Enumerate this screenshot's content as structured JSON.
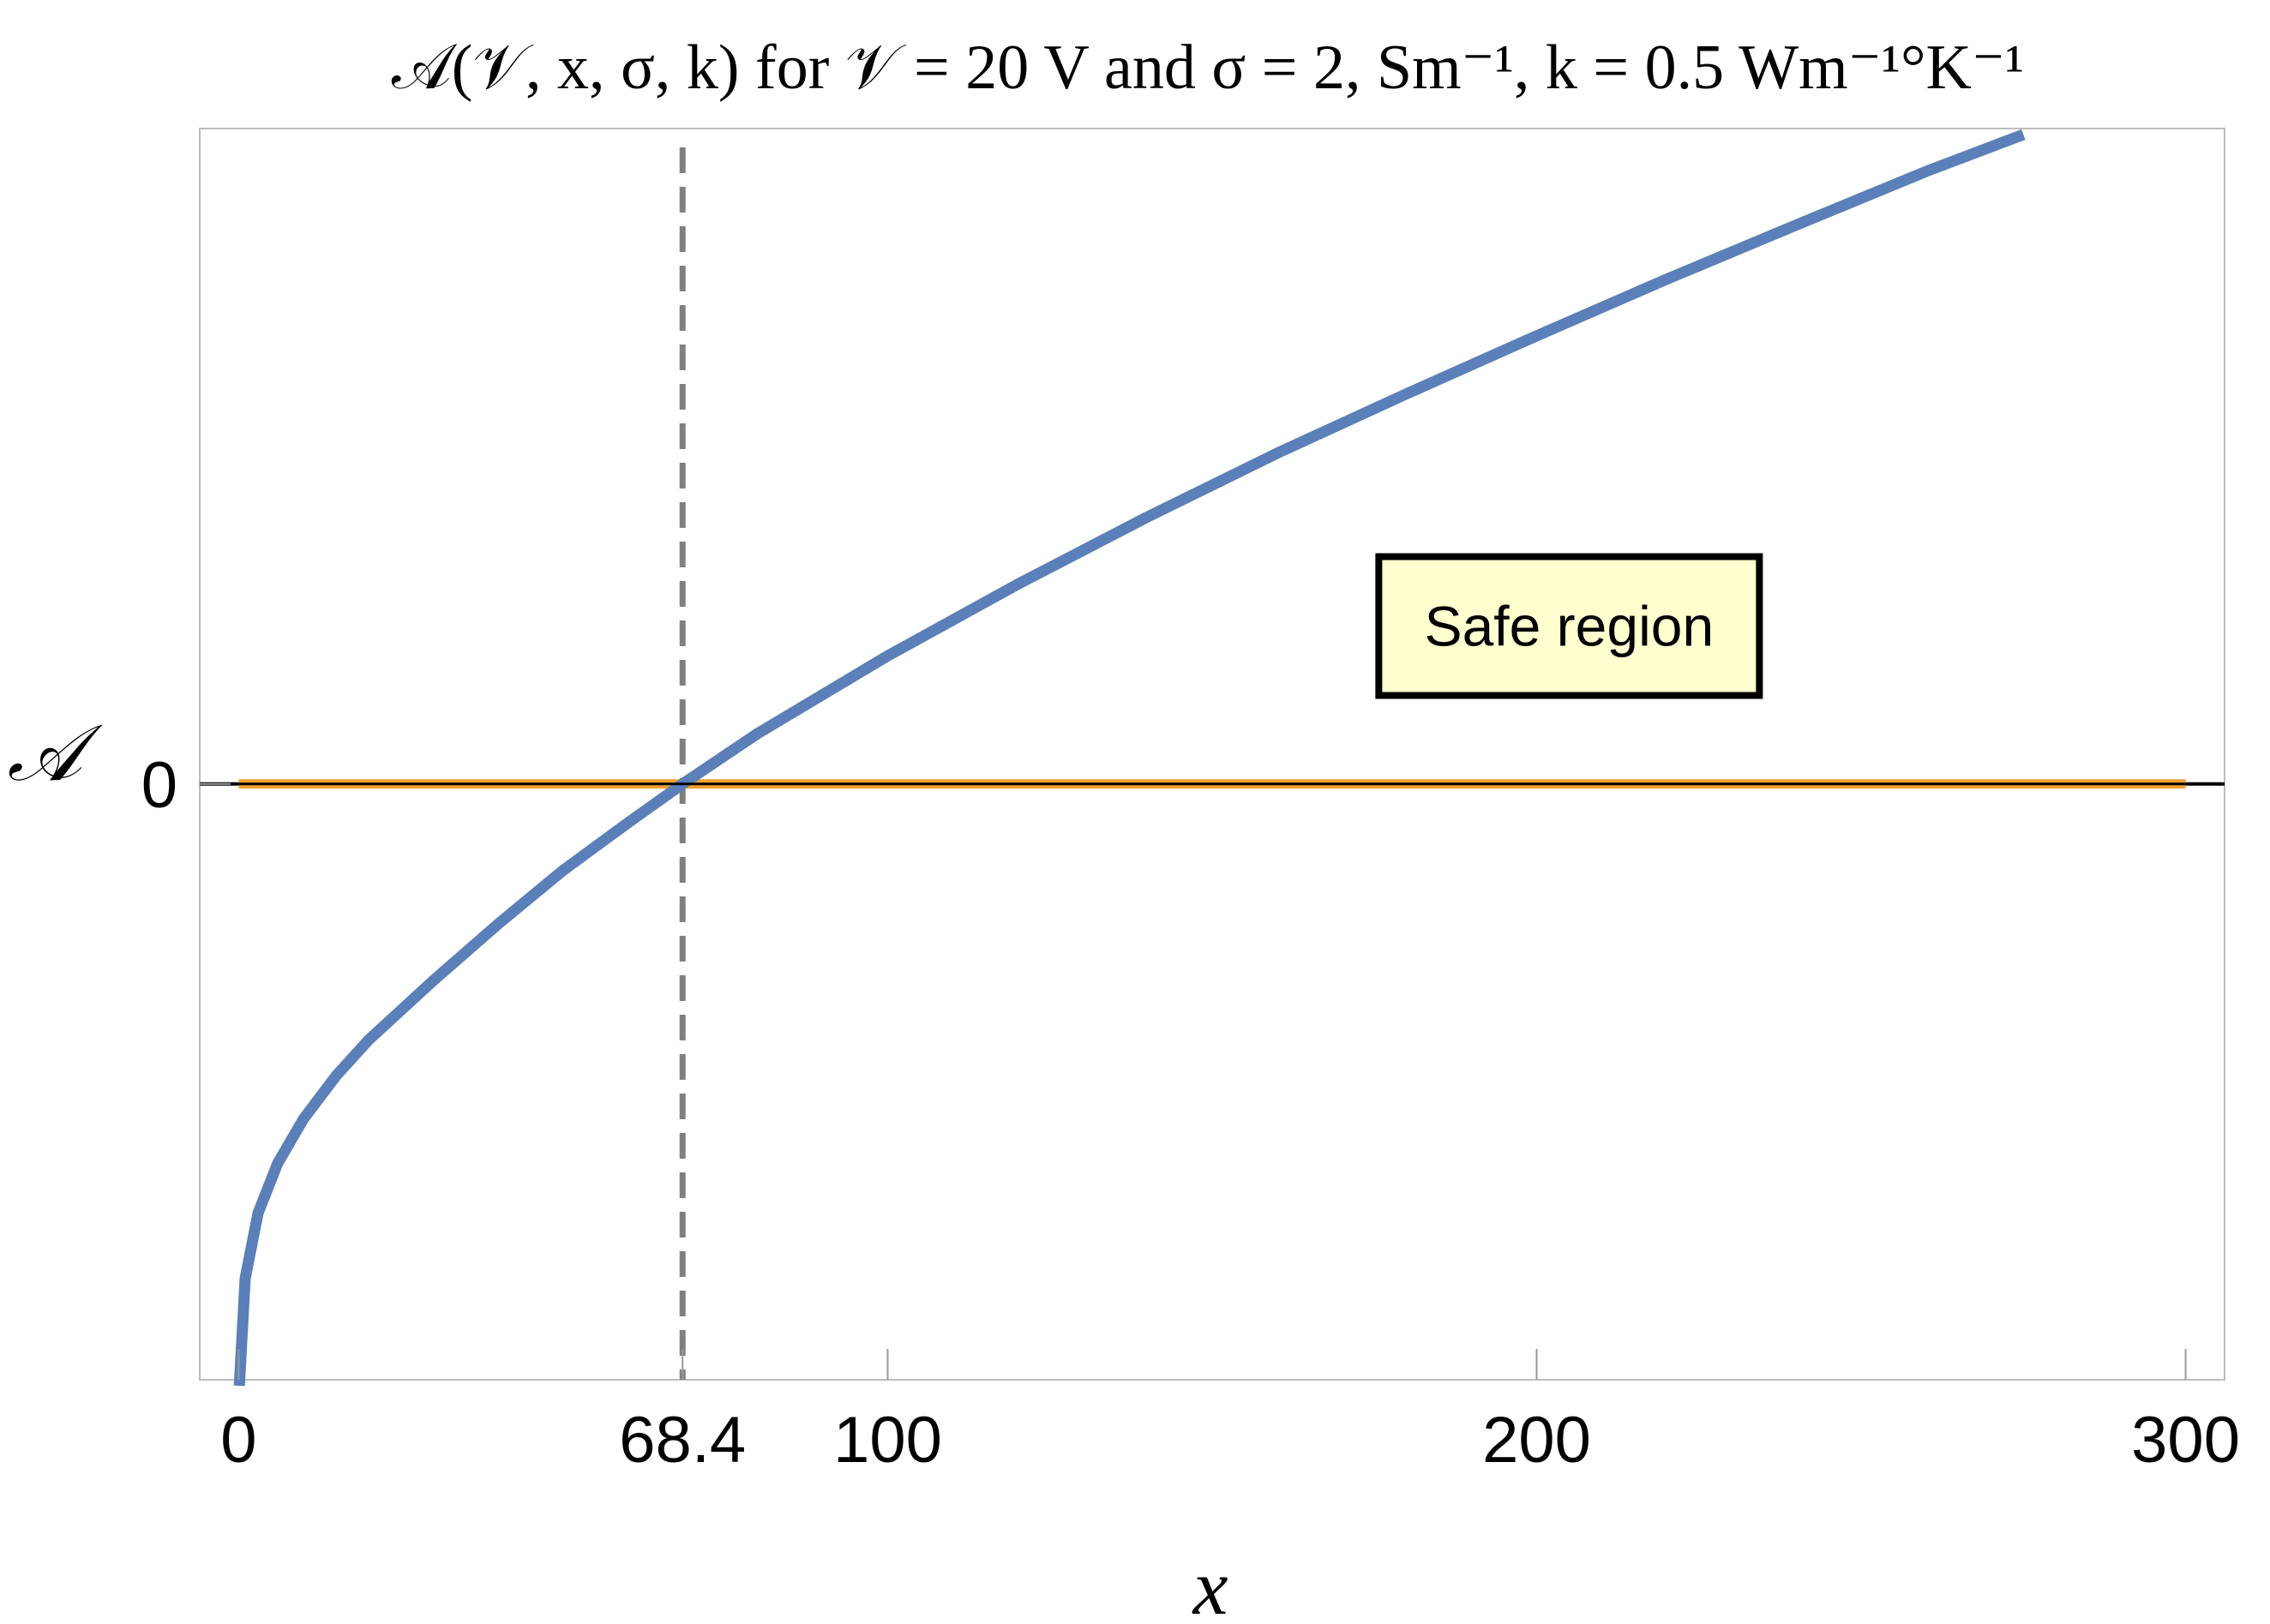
{
  "chart_data": {
    "type": "line",
    "title": "𝒜(𝒱, x, σ, k) for 𝒱 = 20 V and σ = 2, Sm⁻¹, k = 0.5 Wm⁻¹°K⁻¹",
    "xlabel": "x",
    "ylabel": "𝒜",
    "xlim": [
      -6,
      306
    ],
    "ylim": [
      -1.0,
      1.1
    ],
    "x_ticks": [
      {
        "value": 0,
        "label": "0"
      },
      {
        "value": 68.4,
        "label": "68.4"
      },
      {
        "value": 100,
        "label": "100"
      },
      {
        "value": 200,
        "label": "200"
      },
      {
        "value": 300,
        "label": "300"
      }
    ],
    "y_ticks": [
      {
        "value": 0,
        "label": "0"
      }
    ],
    "series": [
      {
        "color": "#5b7fb8",
        "x": [
          0.1,
          1,
          3,
          6,
          10,
          15,
          20,
          30,
          40,
          50,
          60,
          68.4,
          80,
          100,
          120,
          140,
          160,
          180,
          200,
          220,
          240,
          260,
          275
        ],
        "y": [
          -1.01,
          -0.83,
          -0.72,
          -0.637,
          -0.562,
          -0.49,
          -0.43,
          -0.33,
          -0.235,
          -0.145,
          -0.065,
          0,
          0.085,
          0.215,
          0.335,
          0.448,
          0.555,
          0.655,
          0.752,
          0.847,
          0.938,
          1.028,
          1.09
        ]
      },
      {
        "color": "#f0a030",
        "x": [
          0,
          300
        ],
        "y": [
          0,
          0
        ]
      }
    ],
    "vertical_line": {
      "x": 68.4,
      "style": "dashed",
      "color": "#808080"
    },
    "annotation": {
      "text": "Safe region",
      "x": 205,
      "y": 0.265,
      "background": "#ffffd0",
      "border": "#000000"
    },
    "grid": false,
    "legend": "none"
  }
}
